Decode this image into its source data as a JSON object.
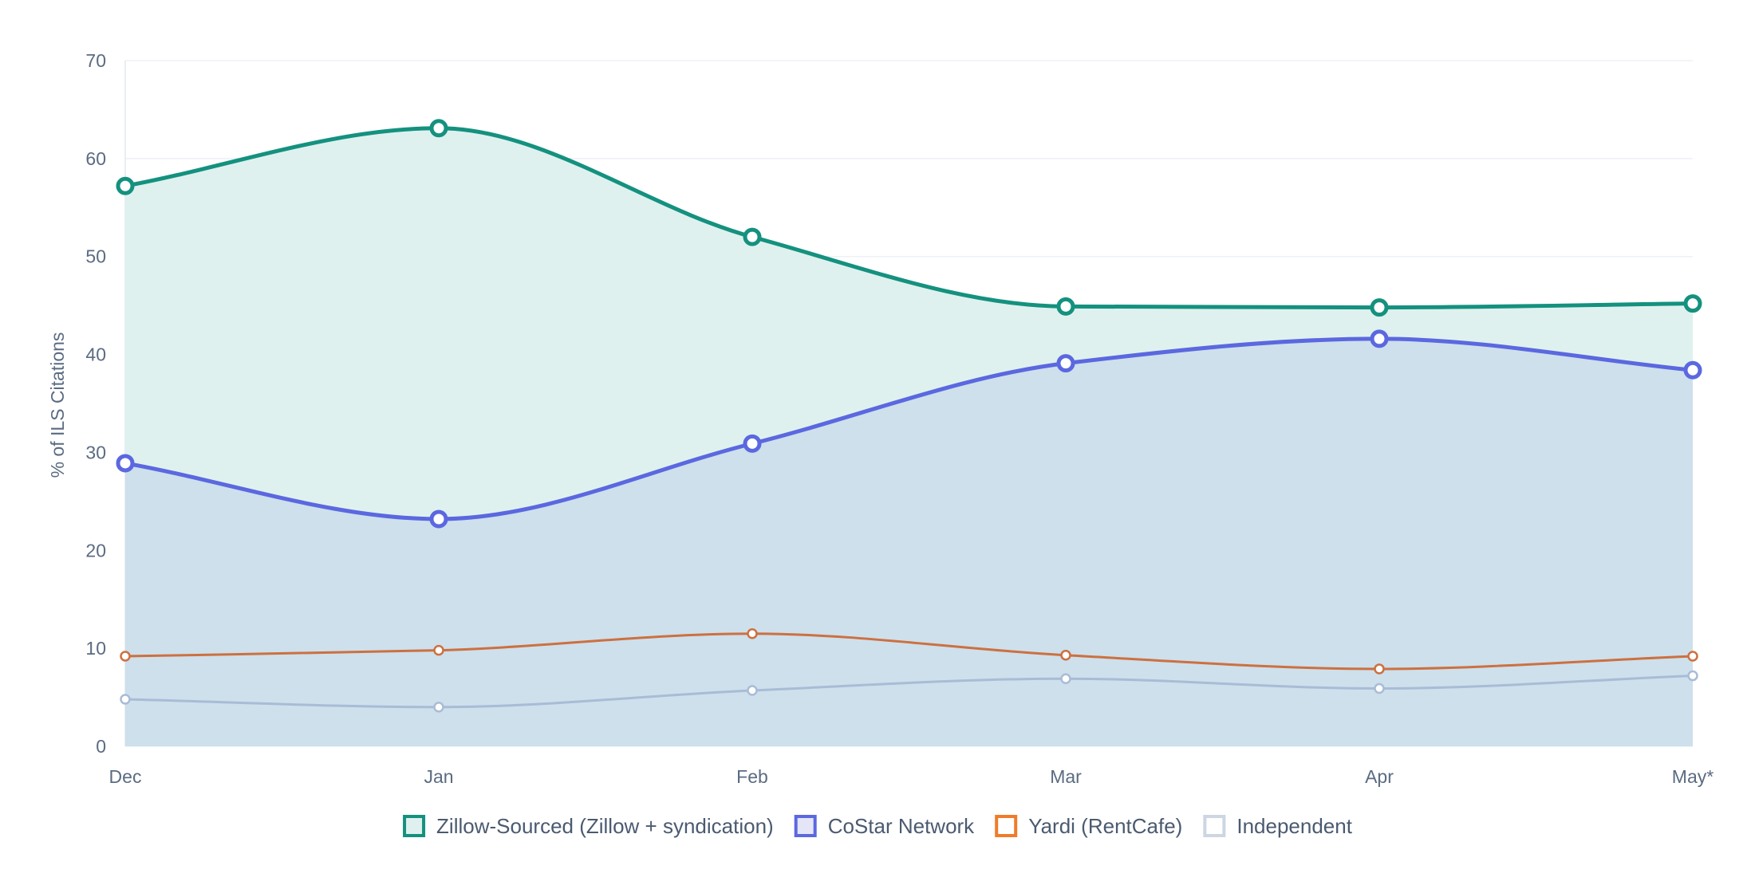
{
  "chart_data": {
    "type": "area",
    "title": "",
    "xlabel": "",
    "ylabel": "% of ILS Citations",
    "categories": [
      "Dec",
      "Jan",
      "Feb",
      "Mar",
      "Apr",
      "May*"
    ],
    "ylim": [
      0,
      70
    ],
    "yticks": [
      0,
      10,
      20,
      30,
      40,
      50,
      60,
      70
    ],
    "grid": true,
    "legend_position": "bottom-center",
    "series": [
      {
        "name": "Zillow-Sourced (Zillow + syndication)",
        "key": "zillow",
        "color": "#14917f",
        "fill": "#dff1ee",
        "filled": true,
        "values": [
          57.2,
          63.1,
          52.0,
          44.9,
          44.8,
          45.2
        ]
      },
      {
        "name": "CoStar Network",
        "key": "costar",
        "color": "#5b68e0",
        "fill": "#cde0ec",
        "filled": true,
        "values": [
          28.9,
          23.2,
          30.9,
          39.1,
          41.6,
          38.4
        ]
      },
      {
        "name": "Yardi (RentCafe)",
        "key": "yardi",
        "color": "#cd7040",
        "fill": "none",
        "filled": false,
        "values": [
          9.2,
          9.8,
          11.5,
          9.3,
          7.9,
          9.2
        ]
      },
      {
        "name": "Independent",
        "key": "independent",
        "color": "#a9bcd6",
        "fill": "none",
        "filled": false,
        "values": [
          4.8,
          4.0,
          5.7,
          6.9,
          5.9,
          7.2
        ]
      }
    ]
  },
  "legend": {
    "items": [
      {
        "label": "Zillow-Sourced (Zillow + syndication)",
        "border": "#14917f",
        "fill": "#dff1ee"
      },
      {
        "label": "CoStar Network",
        "border": "#5b68e0",
        "fill": "#e4e6f8"
      },
      {
        "label": "Yardi (RentCafe)",
        "border": "#f07b2a",
        "fill": "#ffffff"
      },
      {
        "label": "Independent",
        "border": "#cdd6e2",
        "fill": "#ffffff"
      }
    ]
  }
}
